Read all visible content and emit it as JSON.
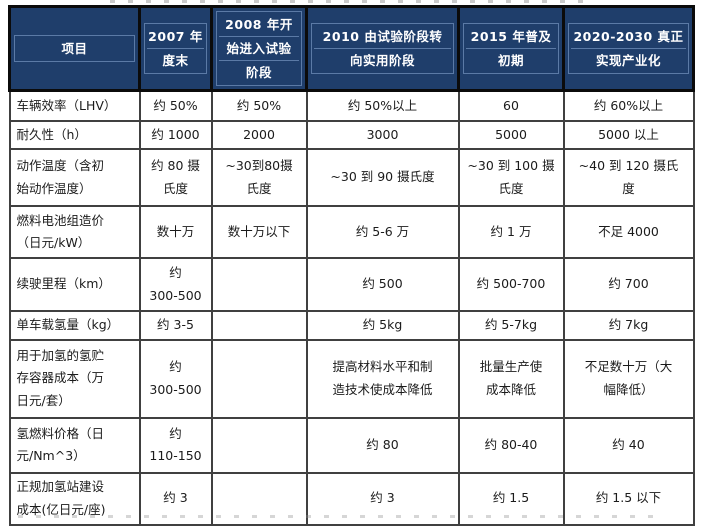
{
  "colors": {
    "header_bg": "#1f3e6b",
    "header_text": "#ffffff",
    "header_inner_line": "#5b7aa6",
    "header_border": "#0b0b0b",
    "body_border": "#404040",
    "body_text": "#1b1b1b"
  },
  "table": {
    "headers": [
      {
        "lines": [
          "项目"
        ]
      },
      {
        "lines": [
          "2007 年",
          "度末"
        ]
      },
      {
        "lines": [
          "2008 年开",
          "始进入试验",
          "阶段"
        ]
      },
      {
        "lines": [
          "2010 由试验阶段转",
          "向实用阶段"
        ]
      },
      {
        "lines": [
          "2015 年普及",
          "初期"
        ]
      },
      {
        "lines": [
          "2020-2030 真正",
          "实现产业化"
        ]
      }
    ],
    "rows": [
      {
        "cells": [
          "车辆效率（LHV）",
          "约 50%",
          "约 50%",
          "约 50%以上",
          "60",
          "约 60%以上"
        ]
      },
      {
        "cells": [
          "耐久性（h）",
          "约 1000",
          "2000",
          "3000",
          "5000",
          "5000 以上"
        ]
      },
      {
        "cells": [
          "动作温度（含初\n始动作温度）",
          "约 80 摄\n氏度",
          "~30到80摄\n氏度",
          "~30 到 90 摄氏度",
          "~30 到 100 摄\n氏度",
          "~40 到 120 摄氏\n度"
        ]
      },
      {
        "cells": [
          "燃料电池组造价\n（日元/kW）",
          "数十万",
          "数十万以下",
          "约 5-6 万",
          "约 1 万",
          "不足 4000"
        ]
      },
      {
        "cells": [
          "续驶里程（km）",
          "约\n300-500",
          "",
          "约 500",
          "约 500-700",
          "约 700"
        ]
      },
      {
        "cells": [
          "单车载氢量（kg）",
          "约 3-5",
          "",
          "约 5kg",
          "约 5-7kg",
          "约 7kg"
        ]
      },
      {
        "cells": [
          "用于加氢的氢贮\n存容器成本（万\n日元/套）",
          "约\n300-500",
          "",
          "提高材料水平和制\n造技术使成本降低",
          "批量生产使\n成本降低",
          "不足数十万（大\n幅降低）"
        ]
      },
      {
        "cells": [
          "氢燃料价格（日\n元/Nm^3）",
          "约\n110-150",
          "",
          "约 80",
          "约 80-40",
          "约 40"
        ]
      },
      {
        "cells": [
          "正规加氢站建设\n成本(亿日元/座)",
          "约 3",
          "",
          "约 3",
          "约 1.5",
          "约 1.5 以下"
        ]
      }
    ]
  }
}
